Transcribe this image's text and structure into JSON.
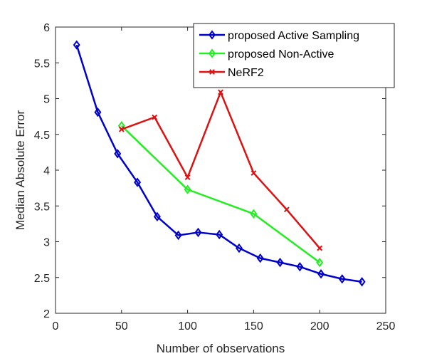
{
  "chart_data": {
    "type": "line",
    "title": "",
    "xlabel": "Number of observations",
    "ylabel": "Median Absolute Error",
    "xlim": [
      0,
      250
    ],
    "ylim": [
      2,
      6
    ],
    "xticks": [
      0,
      50,
      100,
      150,
      200,
      250
    ],
    "yticks": [
      2,
      2.5,
      3,
      3.5,
      4,
      4.5,
      5,
      5.5,
      6
    ],
    "xtick_labels": [
      "0",
      "50",
      "100",
      "150",
      "200",
      "250"
    ],
    "ytick_labels": [
      "2",
      "2.5",
      "3",
      "3.5",
      "4",
      "4.5",
      "5",
      "5.5",
      "6"
    ],
    "grid": false,
    "legend_position": "top-right",
    "series": [
      {
        "name": "proposed Active Sampling",
        "color": "#0000cc",
        "marker": "diamond",
        "x": [
          16,
          32,
          47,
          62,
          77,
          93,
          108,
          124,
          139,
          155,
          170,
          185,
          201,
          217,
          232
        ],
        "y": [
          5.75,
          4.81,
          4.23,
          3.83,
          3.35,
          3.09,
          3.13,
          3.1,
          2.91,
          2.77,
          2.71,
          2.65,
          2.55,
          2.48,
          2.44
        ]
      },
      {
        "name": "proposed Non-Active",
        "color": "#22ee22",
        "marker": "diamond",
        "x": [
          50,
          100,
          150,
          200
        ],
        "y": [
          4.62,
          3.73,
          3.39,
          2.71
        ]
      },
      {
        "name": "NeRF2",
        "color": "#dd1111",
        "marker": "x",
        "x": [
          50,
          75,
          100,
          125,
          150,
          175,
          200
        ],
        "y": [
          4.57,
          4.74,
          3.9,
          5.09,
          3.96,
          3.45,
          2.91
        ]
      }
    ]
  }
}
